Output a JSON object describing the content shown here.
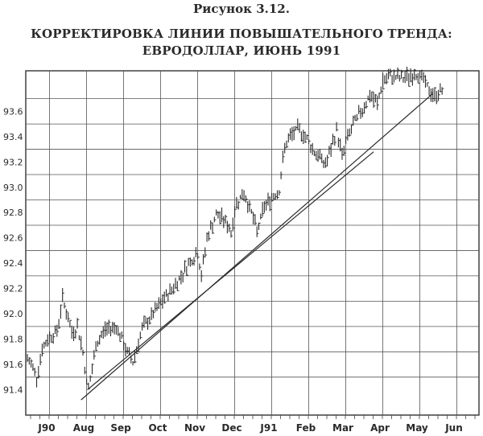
{
  "figure_label": "Рисунок 3.12.",
  "title_line1": "КОРРЕКТИРОВКА ЛИНИИ ПОВЫШАТЕЛЬНОГО ТРЕНДА:",
  "title_line2": "ЕВРОДОЛЛАР, ИЮНЬ 1991",
  "chart_data": {
    "type": "bar",
    "subtype": "daily high-low price bars (OHLC)",
    "title": "КОРРЕКТИРОВКА ЛИНИИ ПОВЫШАТЕЛЬНОГО ТРЕНДА: ЕВРОДОЛЛАР, ИЮНЬ 1991",
    "x_tick_labels": [
      "J90",
      "Aug",
      "Sep",
      "Oct",
      "Nov",
      "Dec",
      "J91",
      "Feb",
      "Mar",
      "Apr",
      "May",
      "Jun"
    ],
    "y_tick_labels": [
      "91.4",
      "91.6",
      "91.8",
      "92.0",
      "92.2",
      "92.4",
      "92.6",
      "92.8",
      "93.0",
      "93.2",
      "93.4",
      "93.6"
    ],
    "ylim": [
      91.2,
      93.92
    ],
    "xlim_months": [
      0,
      11.85
    ],
    "grid": true,
    "price_path": [
      {
        "m": 0.0,
        "p": 91.64
      },
      {
        "m": 0.15,
        "p": 91.58
      },
      {
        "m": 0.25,
        "p": 91.5
      },
      {
        "m": 0.4,
        "p": 91.72
      },
      {
        "m": 0.6,
        "p": 91.82
      },
      {
        "m": 0.8,
        "p": 91.86
      },
      {
        "m": 0.95,
        "p": 92.12
      },
      {
        "m": 1.05,
        "p": 92.02
      },
      {
        "m": 1.2,
        "p": 91.85
      },
      {
        "m": 1.35,
        "p": 91.9
      },
      {
        "m": 1.5,
        "p": 91.7
      },
      {
        "m": 1.62,
        "p": 91.4
      },
      {
        "m": 1.72,
        "p": 91.5
      },
      {
        "m": 1.85,
        "p": 91.75
      },
      {
        "m": 2.1,
        "p": 91.88
      },
      {
        "m": 2.4,
        "p": 91.9
      },
      {
        "m": 2.65,
        "p": 91.72
      },
      {
        "m": 2.85,
        "p": 91.62
      },
      {
        "m": 3.1,
        "p": 91.88
      },
      {
        "m": 3.4,
        "p": 92.0
      },
      {
        "m": 3.7,
        "p": 92.12
      },
      {
        "m": 4.05,
        "p": 92.25
      },
      {
        "m": 4.35,
        "p": 92.4
      },
      {
        "m": 4.6,
        "p": 92.48
      },
      {
        "m": 4.7,
        "p": 92.3
      },
      {
        "m": 4.85,
        "p": 92.6
      },
      {
        "m": 5.1,
        "p": 92.78
      },
      {
        "m": 5.3,
        "p": 92.75
      },
      {
        "m": 5.5,
        "p": 92.65
      },
      {
        "m": 5.65,
        "p": 92.88
      },
      {
        "m": 5.85,
        "p": 92.95
      },
      {
        "m": 6.05,
        "p": 92.8
      },
      {
        "m": 6.2,
        "p": 92.65
      },
      {
        "m": 6.4,
        "p": 92.85
      },
      {
        "m": 6.6,
        "p": 92.92
      },
      {
        "m": 6.8,
        "p": 92.98
      },
      {
        "m": 6.95,
        "p": 93.32
      },
      {
        "m": 7.15,
        "p": 93.42
      },
      {
        "m": 7.35,
        "p": 93.46
      },
      {
        "m": 7.55,
        "p": 93.38
      },
      {
        "m": 7.75,
        "p": 93.28
      },
      {
        "m": 7.95,
        "p": 93.22
      },
      {
        "m": 8.05,
        "p": 93.18
      },
      {
        "m": 8.2,
        "p": 93.3
      },
      {
        "m": 8.35,
        "p": 93.45
      },
      {
        "m": 8.5,
        "p": 93.25
      },
      {
        "m": 8.65,
        "p": 93.4
      },
      {
        "m": 8.85,
        "p": 93.52
      },
      {
        "m": 9.05,
        "p": 93.62
      },
      {
        "m": 9.25,
        "p": 93.72
      },
      {
        "m": 9.45,
        "p": 93.66
      },
      {
        "m": 9.6,
        "p": 93.84
      },
      {
        "m": 9.85,
        "p": 93.88
      },
      {
        "m": 10.1,
        "p": 93.86
      },
      {
        "m": 10.35,
        "p": 93.88
      },
      {
        "m": 10.55,
        "p": 93.9
      },
      {
        "m": 10.7,
        "p": 93.85
      },
      {
        "m": 10.85,
        "p": 93.76
      },
      {
        "m": 11.0,
        "p": 93.72
      },
      {
        "m": 11.15,
        "p": 93.76
      },
      {
        "m": 11.25,
        "p": 93.8
      }
    ],
    "trendlines": [
      {
        "from": {
          "m": 1.62,
          "p": 91.4
        },
        "to": {
          "m": 9.35,
          "p": 93.28
        }
      },
      {
        "from": {
          "m": 1.45,
          "p": 91.32
        },
        "to": {
          "m": 10.95,
          "p": 93.74
        }
      }
    ]
  }
}
